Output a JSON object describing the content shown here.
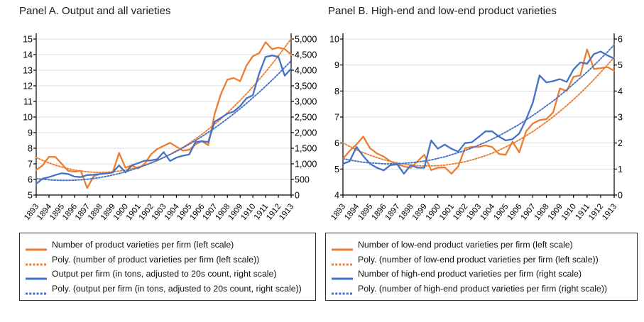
{
  "chart_data": {
    "type": "line",
    "panels": [
      {
        "title": "Panel A. Output and all varieties",
        "x_axis": {
          "range": [
            1893,
            1913
          ],
          "points_per_year": 2,
          "tick_years": [
            "1893",
            "1894",
            "1895",
            "1896",
            "1897",
            "1898",
            "1899",
            "1900",
            "1901",
            "1902",
            "1903",
            "1904",
            "1905",
            "1906",
            "1907",
            "1908",
            "1909",
            "1910",
            "1911",
            "1912",
            "1913"
          ]
        },
        "left_axis": {
          "min": 5,
          "max": 15,
          "tick_labels": [
            "5",
            "6",
            "7",
            "8",
            "9",
            "10",
            "11",
            "12",
            "13",
            "14",
            "15"
          ]
        },
        "right_axis": {
          "min": 0,
          "max": 5000,
          "tick_labels": [
            "0",
            "500",
            "1,000",
            "1,500",
            "2,000",
            "2,500",
            "3,000",
            "3,500",
            "4,000",
            "4,500",
            "5,000"
          ]
        },
        "series": [
          {
            "label": "Number of product varieties per firm (left scale)",
            "axis": "left",
            "line": "solid",
            "color": "#ED7D31",
            "values": [
              6.6,
              6.9,
              7.45,
              7.45,
              7.0,
              6.55,
              6.5,
              6.55,
              5.45,
              6.2,
              6.35,
              6.4,
              6.45,
              7.7,
              6.75,
              6.9,
              6.7,
              7.0,
              7.6,
              7.95,
              8.15,
              8.35,
              8.1,
              7.85,
              7.9,
              8.25,
              8.45,
              8.2,
              10.2,
              11.5,
              12.4,
              12.5,
              12.3,
              13.3,
              13.9,
              14.1,
              14.8,
              14.35,
              14.45,
              14.35,
              14.0
            ]
          },
          {
            "label": "Poly. (number of product varieties per firm (left scale))",
            "axis": "left",
            "line": "dotted",
            "color": "#ED7D31",
            "values": [
              7.41,
              7.22,
              7.06,
              6.92,
              6.79,
              6.69,
              6.6,
              6.54,
              6.49,
              6.46,
              6.45,
              6.46,
              6.49,
              6.54,
              6.6,
              6.69,
              6.79,
              6.92,
              7.06,
              7.22,
              7.41,
              7.61,
              7.83,
              8.06,
              8.32,
              8.6,
              8.89,
              9.21,
              9.54,
              9.89,
              10.27,
              10.66,
              11.07,
              11.49,
              11.94,
              12.41,
              12.89,
              13.4,
              13.92,
              14.46,
              15.02
            ]
          },
          {
            "label": "Output per firm (in tons, adjusted to 20s count, right scale)",
            "axis": "right",
            "line": "solid",
            "color": "#4472C4",
            "values": [
              360,
              525,
              575,
              640,
              700,
              675,
              590,
              575,
              640,
              650,
              675,
              690,
              725,
              950,
              725,
              950,
              1025,
              1100,
              1110,
              1150,
              1375,
              1090,
              1200,
              1260,
              1300,
              1700,
              1725,
              1700,
              2350,
              2475,
              2610,
              2675,
              2850,
              3100,
              3200,
              3900,
              4430,
              4470,
              4430,
              3825,
              4050
            ]
          },
          {
            "label": "Poly. (output per firm (in tons, adjusted to 20s count, right scale))",
            "axis": "right",
            "line": "dotted",
            "color": "#4472C4",
            "values": [
              530,
              506,
              488,
              476,
              470,
              470,
              476,
              488,
              507,
              531,
              561,
              598,
              640,
              689,
              744,
              805,
              872,
              945,
              1024,
              1109,
              1200,
              1297,
              1401,
              1510,
              1626,
              1747,
              1875,
              2009,
              2148,
              2294,
              2446,
              2604,
              2769,
              2939,
              3115,
              3298,
              3486,
              3681,
              3881,
              4088,
              4301
            ]
          }
        ]
      },
      {
        "title": "Panel B. High-end and low-end product varieties",
        "x_axis": {
          "range": [
            1893,
            1913
          ],
          "points_per_year": 2,
          "tick_years": [
            "1893",
            "1894",
            "1895",
            "1896",
            "1897",
            "1898",
            "1899",
            "1900",
            "1901",
            "1902",
            "1903",
            "1904",
            "1905",
            "1906",
            "1907",
            "1908",
            "1909",
            "1910",
            "1911",
            "1912",
            "1913"
          ]
        },
        "left_axis": {
          "min": 4,
          "max": 10,
          "tick_labels": [
            "4",
            "5",
            "6",
            "7",
            "8",
            "9",
            "10"
          ]
        },
        "right_axis": {
          "min": 0,
          "max": 6,
          "tick_labels": [
            "0",
            "1",
            "2",
            "3",
            "4",
            "5",
            "6"
          ]
        },
        "series": [
          {
            "label": "Number of low-end product varieties per firm (left scale)",
            "axis": "left",
            "line": "solid",
            "color": "#ED7D31",
            "values": [
              5.4,
              5.7,
              5.95,
              6.25,
              5.8,
              5.6,
              5.48,
              5.3,
              5.18,
              5.1,
              5.05,
              5.3,
              5.55,
              4.96,
              5.05,
              5.07,
              4.82,
              5.1,
              5.8,
              5.85,
              5.85,
              5.91,
              5.85,
              5.58,
              5.55,
              6.05,
              5.64,
              6.45,
              6.75,
              6.88,
              6.92,
              7.18,
              8.1,
              8.0,
              8.55,
              8.6,
              9.6,
              8.85,
              8.88,
              8.92,
              8.78
            ]
          },
          {
            "label": "Poly. (number of low-end product varieties per firm (left scale))",
            "axis": "left",
            "line": "dotted",
            "color": "#ED7D31",
            "values": [
              6.0,
              5.87,
              5.74,
              5.63,
              5.53,
              5.44,
              5.36,
              5.29,
              5.24,
              5.19,
              5.16,
              5.13,
              5.12,
              5.12,
              5.13,
              5.15,
              5.19,
              5.23,
              5.28,
              5.35,
              5.43,
              5.51,
              5.61,
              5.72,
              5.85,
              5.98,
              6.12,
              6.28,
              6.44,
              6.62,
              6.81,
              7.01,
              7.22,
              7.44,
              7.67,
              7.92,
              8.17,
              8.44,
              8.72,
              9.0,
              9.3
            ]
          },
          {
            "label": "Number of high-end product varieties per firm (right scale)",
            "axis": "right",
            "line": "solid",
            "color": "#4472C4",
            "values": [
              1.2,
              1.3,
              1.85,
              1.5,
              1.2,
              1.05,
              0.95,
              1.15,
              1.18,
              0.82,
              1.15,
              1.05,
              1.05,
              2.1,
              1.78,
              1.94,
              1.78,
              1.67,
              2.0,
              2.03,
              2.23,
              2.45,
              2.45,
              2.25,
              2.1,
              2.15,
              2.37,
              2.9,
              3.55,
              4.6,
              4.33,
              4.38,
              4.46,
              4.35,
              4.83,
              5.1,
              5.05,
              5.42,
              5.52,
              5.37,
              5.25
            ]
          },
          {
            "label": "Poly. (number of high-end product varieties per firm (right scale))",
            "axis": "right",
            "line": "dotted",
            "color": "#4472C4",
            "values": [
              1.4,
              1.35,
              1.3,
              1.26,
              1.24,
              1.22,
              1.2,
              1.2,
              1.2,
              1.22,
              1.24,
              1.27,
              1.31,
              1.35,
              1.41,
              1.47,
              1.55,
              1.63,
              1.71,
              1.81,
              1.92,
              2.03,
              2.15,
              2.28,
              2.42,
              2.57,
              2.72,
              2.89,
              3.06,
              3.24,
              3.43,
              3.62,
              3.83,
              4.04,
              4.27,
              4.5,
              4.73,
              4.98,
              5.24,
              5.5,
              5.77
            ]
          }
        ]
      }
    ],
    "style": {
      "gridline_color": "#DBDBDB",
      "axis_color": "#000000",
      "accent_orange": "#ED7D31",
      "accent_blue": "#4472C4"
    }
  }
}
